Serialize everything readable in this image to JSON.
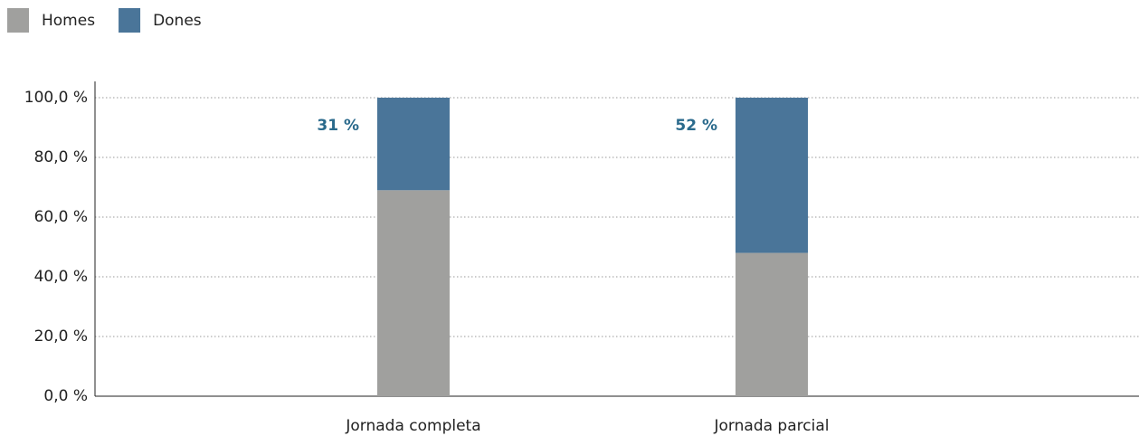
{
  "chart_data": {
    "type": "stacked_bar",
    "categories": [
      "Jornada completa",
      "Jornada parcial"
    ],
    "series": [
      {
        "name": "Homes",
        "color": "#a0a09e",
        "values": [
          69,
          48
        ]
      },
      {
        "name": "Dones",
        "color": "#4a7599",
        "values": [
          31,
          52
        ],
        "value_labels": [
          "31 %",
          "52 %"
        ]
      }
    ],
    "ylim": [
      0,
      100
    ],
    "yticks": [
      {
        "value": 0,
        "label": "0,0 %"
      },
      {
        "value": 20,
        "label": "20,0 %"
      },
      {
        "value": 40,
        "label": "40,0 %"
      },
      {
        "value": 60,
        "label": "60,0 %"
      },
      {
        "value": 80,
        "label": "80,0 %"
      },
      {
        "value": 100,
        "label": "100,0 %"
      }
    ],
    "grid": true,
    "legend": "top-left"
  }
}
